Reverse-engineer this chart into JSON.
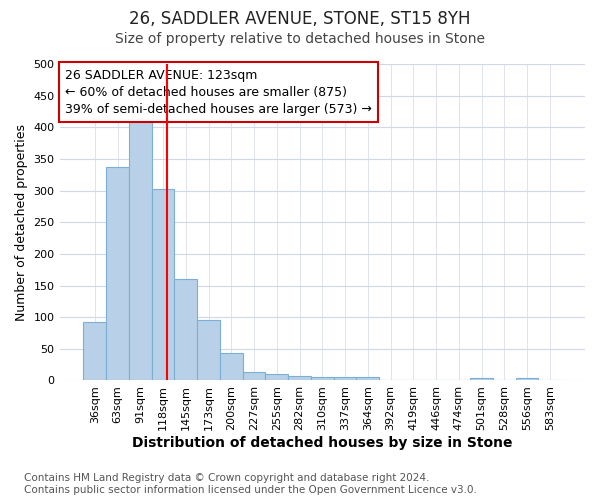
{
  "title": "26, SADDLER AVENUE, STONE, ST15 8YH",
  "subtitle": "Size of property relative to detached houses in Stone",
  "xlabel": "Distribution of detached houses by size in Stone",
  "ylabel": "Number of detached properties",
  "categories": [
    "36sqm",
    "63sqm",
    "91sqm",
    "118sqm",
    "145sqm",
    "173sqm",
    "200sqm",
    "227sqm",
    "255sqm",
    "282sqm",
    "310sqm",
    "337sqm",
    "364sqm",
    "392sqm",
    "419sqm",
    "446sqm",
    "474sqm",
    "501sqm",
    "528sqm",
    "556sqm",
    "583sqm"
  ],
  "values": [
    93,
    337,
    408,
    303,
    161,
    96,
    44,
    14,
    10,
    7,
    5,
    5,
    5,
    0,
    0,
    0,
    0,
    4,
    0,
    4,
    0
  ],
  "bar_color": "#b8d0e8",
  "bar_edgecolor": "#7bafd4",
  "ylim": [
    0,
    500
  ],
  "yticks": [
    0,
    50,
    100,
    150,
    200,
    250,
    300,
    350,
    400,
    450,
    500
  ],
  "property_label": "26 SADDLER AVENUE: 123sqm",
  "annotation_line1": "← 60% of detached houses are smaller (875)",
  "annotation_line2": "39% of semi-detached houses are larger (573) →",
  "redline_x": 3.18,
  "footer1": "Contains HM Land Registry data © Crown copyright and database right 2024.",
  "footer2": "Contains public sector information licensed under the Open Government Licence v3.0.",
  "background_color": "#ffffff",
  "plot_background": "#ffffff",
  "grid_color": "#d0d8e8",
  "annotation_box_edgecolor": "#cc0000",
  "title_fontsize": 12,
  "subtitle_fontsize": 10,
  "ylabel_fontsize": 9,
  "xlabel_fontsize": 10,
  "tick_fontsize": 8,
  "annotation_fontsize": 9,
  "footer_fontsize": 7.5
}
